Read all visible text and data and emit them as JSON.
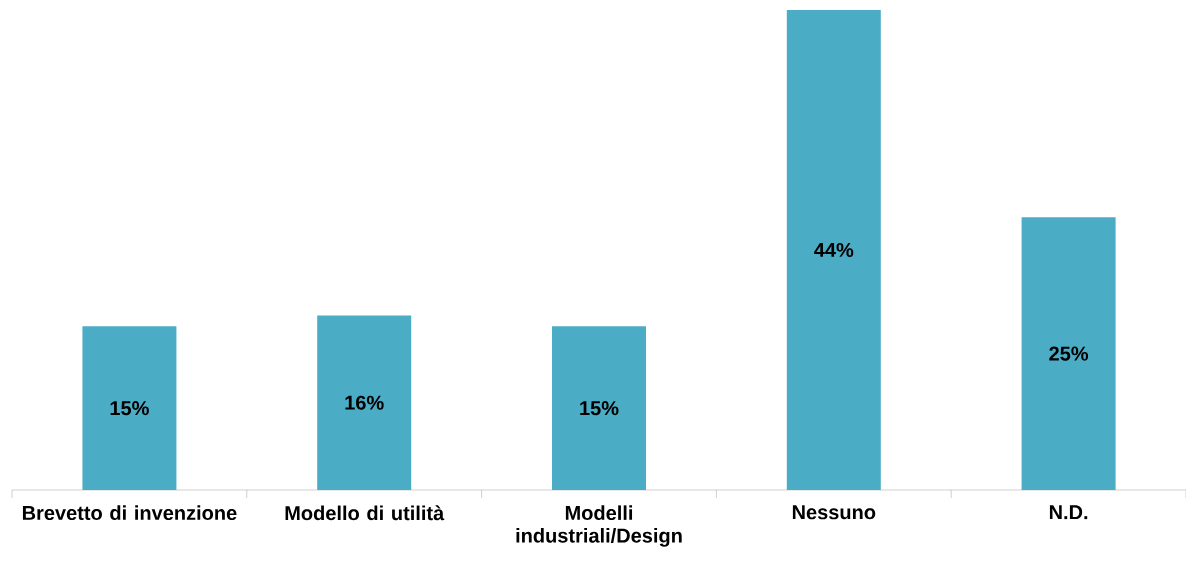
{
  "chart_data": {
    "type": "bar",
    "categories": [
      "Brevetto di invenzione",
      "Modello di utilità",
      "Modelli industriali/Design",
      "Nessuno",
      "N.D."
    ],
    "values": [
      15,
      16,
      15,
      44,
      25
    ],
    "value_labels": [
      "15%",
      "16%",
      "15%",
      "44%",
      "25%"
    ],
    "color": "#4bacc6"
  }
}
